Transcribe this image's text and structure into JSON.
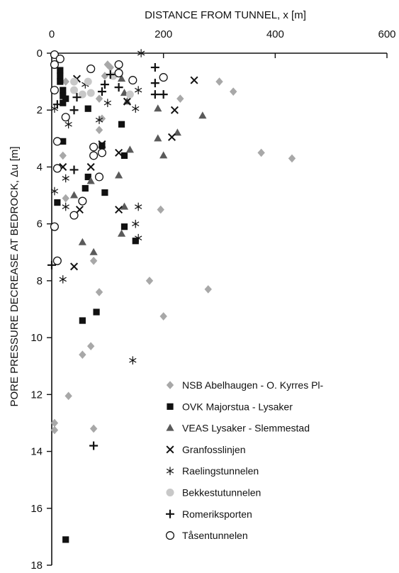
{
  "chart_data": {
    "type": "scatter",
    "xlabel": "DISTANCE FROM TUNNEL, x [m]",
    "ylabel": "PORE PRESSURE DECREASE AT BEDROCK, Δu [m]",
    "x_axis_position": "top",
    "y_axis_inverted": true,
    "xlim": [
      0,
      600
    ],
    "ylim": [
      0,
      18
    ],
    "xticks": [
      0,
      200,
      400,
      600
    ],
    "yticks": [
      0,
      2,
      4,
      6,
      8,
      10,
      12,
      14,
      16,
      18
    ],
    "grid": false,
    "legend_position": "bottom-right",
    "colors": {
      "dark": "#333333",
      "medium": "#5a5a5a",
      "light": "#a8a8a8",
      "lighter": "#c8c8c8"
    },
    "series": [
      {
        "name": "NSB Abelhaugen - O. Kyrres Pl-",
        "marker": "diamond",
        "color": "#a8a8a8",
        "points": [
          [
            100,
            0.4
          ],
          [
            105,
            0.5
          ],
          [
            95,
            0.8
          ],
          [
            300,
            1.0
          ],
          [
            325,
            1.35
          ],
          [
            230,
            1.6
          ],
          [
            85,
            1.6
          ],
          [
            25,
            1.0
          ],
          [
            90,
            2.3
          ],
          [
            85,
            2.7
          ],
          [
            375,
            3.5
          ],
          [
            430,
            3.7
          ],
          [
            20,
            3.6
          ],
          [
            25,
            5.1
          ],
          [
            195,
            5.5
          ],
          [
            75,
            7.3
          ],
          [
            175,
            8.0
          ],
          [
            280,
            8.3
          ],
          [
            85,
            8.4
          ],
          [
            200,
            9.25
          ],
          [
            70,
            10.3
          ],
          [
            55,
            10.6
          ],
          [
            30,
            12.05
          ],
          [
            5,
            13.0
          ],
          [
            75,
            13.2
          ],
          [
            5,
            13.25
          ]
        ]
      },
      {
        "name": "OVK Majorstua - Lysaker",
        "marker": "square",
        "color": "#111111",
        "points": [
          [
            15,
            0.6
          ],
          [
            15,
            0.8
          ],
          [
            15,
            1.0
          ],
          [
            20,
            1.3
          ],
          [
            20,
            1.5
          ],
          [
            25,
            1.6
          ],
          [
            20,
            1.75
          ],
          [
            65,
            1.95
          ],
          [
            125,
            2.5
          ],
          [
            20,
            3.1
          ],
          [
            90,
            3.25
          ],
          [
            130,
            3.6
          ],
          [
            65,
            4.35
          ],
          [
            60,
            4.75
          ],
          [
            95,
            4.9
          ],
          [
            10,
            5.25
          ],
          [
            130,
            6.1
          ],
          [
            150,
            6.6
          ],
          [
            80,
            9.1
          ],
          [
            55,
            9.4
          ],
          [
            25,
            17.1
          ]
        ]
      },
      {
        "name": "VEAS Lysaker - Slemmestad",
        "marker": "triangle",
        "color": "#5a5a5a",
        "points": [
          [
            125,
            0.9
          ],
          [
            130,
            1.4
          ],
          [
            135,
            1.7
          ],
          [
            190,
            1.95
          ],
          [
            270,
            2.2
          ],
          [
            225,
            2.8
          ],
          [
            190,
            3.0
          ],
          [
            200,
            3.6
          ],
          [
            140,
            3.4
          ],
          [
            120,
            4.3
          ],
          [
            70,
            4.5
          ],
          [
            40,
            5.0
          ],
          [
            130,
            5.4
          ],
          [
            125,
            6.35
          ],
          [
            55,
            6.65
          ],
          [
            75,
            7.0
          ]
        ]
      },
      {
        "name": "Granfosslinjen",
        "marker": "x",
        "color": "#111111",
        "points": [
          [
            45,
            0.9
          ],
          [
            255,
            0.95
          ],
          [
            135,
            1.7
          ],
          [
            220,
            2.0
          ],
          [
            215,
            2.95
          ],
          [
            90,
            3.2
          ],
          [
            120,
            3.5
          ],
          [
            20,
            4.0
          ],
          [
            70,
            4.0
          ],
          [
            50,
            5.5
          ],
          [
            120,
            5.5
          ],
          [
            40,
            7.5
          ]
        ]
      },
      {
        "name": "Raelingstunnelen",
        "marker": "asterisk",
        "color": "#111111",
        "points": [
          [
            160,
            0.0
          ],
          [
            60,
            1.1
          ],
          [
            155,
            1.3
          ],
          [
            100,
            1.75
          ],
          [
            5,
            1.95
          ],
          [
            150,
            1.95
          ],
          [
            85,
            2.35
          ],
          [
            30,
            2.5
          ],
          [
            25,
            4.4
          ],
          [
            5,
            4.85
          ],
          [
            25,
            5.4
          ],
          [
            155,
            5.4
          ],
          [
            150,
            6.0
          ],
          [
            155,
            6.5
          ],
          [
            20,
            7.95
          ],
          [
            145,
            10.8
          ]
        ]
      },
      {
        "name": "Bekkestutunnelen",
        "marker": "circle-filled",
        "color": "#c8c8c8",
        "points": [
          [
            40,
            1.0
          ],
          [
            65,
            1.0
          ],
          [
            40,
            1.3
          ],
          [
            70,
            1.4
          ],
          [
            55,
            1.45
          ],
          [
            140,
            1.45
          ],
          [
            110,
            0.8
          ]
        ]
      },
      {
        "name": "Romeriksporten",
        "marker": "plus",
        "color": "#111111",
        "points": [
          [
            185,
            0.5
          ],
          [
            105,
            0.75
          ],
          [
            185,
            1.05
          ],
          [
            95,
            1.1
          ],
          [
            120,
            1.2
          ],
          [
            90,
            1.35
          ],
          [
            45,
            1.55
          ],
          [
            185,
            1.45
          ],
          [
            200,
            1.45
          ],
          [
            10,
            1.8
          ],
          [
            40,
            2.0
          ],
          [
            40,
            4.1
          ],
          [
            0,
            7.45
          ],
          [
            75,
            13.8
          ]
        ]
      },
      {
        "name": "Tåsentunnelen",
        "marker": "circle-open",
        "color": "#111111",
        "points": [
          [
            5,
            0.05
          ],
          [
            15,
            0.2
          ],
          [
            5,
            0.4
          ],
          [
            120,
            0.4
          ],
          [
            70,
            0.55
          ],
          [
            120,
            0.7
          ],
          [
            200,
            0.85
          ],
          [
            145,
            0.95
          ],
          [
            5,
            1.3
          ],
          [
            25,
            2.25
          ],
          [
            10,
            3.1
          ],
          [
            75,
            3.3
          ],
          [
            90,
            3.5
          ],
          [
            75,
            3.6
          ],
          [
            10,
            4.05
          ],
          [
            85,
            4.35
          ],
          [
            55,
            5.2
          ],
          [
            40,
            5.7
          ],
          [
            5,
            6.1
          ],
          [
            10,
            7.3
          ]
        ]
      }
    ]
  }
}
